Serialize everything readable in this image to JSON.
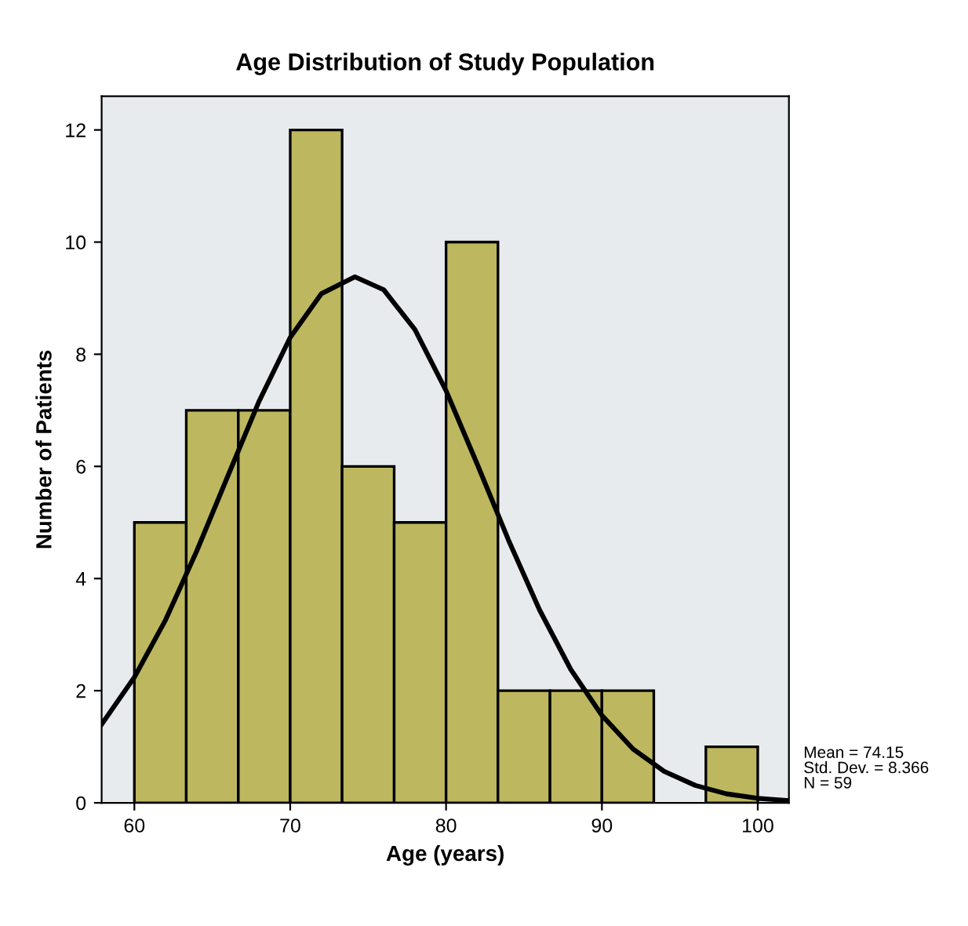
{
  "chart_data": {
    "type": "histogram",
    "title": "Age Distribution of Study Population",
    "xlabel": "Age (years)",
    "ylabel": "Number of Patients",
    "xlim": [
      57.9,
      102.0
    ],
    "ylim": [
      0,
      12.6
    ],
    "xticks": [
      60,
      70,
      80,
      90,
      100
    ],
    "yticks": [
      0,
      2,
      4,
      6,
      8,
      10,
      12
    ],
    "grid": false,
    "legend": false,
    "color": "#bdb75f",
    "bins": [
      60,
      63.33,
      66.67,
      70,
      73.33,
      76.67,
      80,
      83.33,
      86.67,
      90,
      93.33,
      96.67,
      100
    ],
    "values": [
      5,
      7,
      7,
      12,
      6,
      5,
      10,
      2,
      2,
      2,
      0,
      1
    ],
    "series": [
      {
        "type": "line",
        "color": "#000000",
        "x": [
          57.9,
          60,
          62,
          64,
          66,
          68,
          70,
          72,
          74.15,
          76,
          78,
          80,
          82,
          84,
          86,
          88,
          90,
          92,
          94,
          96,
          98,
          100,
          102
        ],
        "values": [
          1.4,
          2.24,
          3.26,
          4.49,
          5.83,
          7.16,
          8.3,
          9.08,
          9.38,
          9.15,
          8.44,
          7.35,
          6.04,
          4.69,
          3.44,
          2.38,
          1.56,
          0.96,
          0.56,
          0.31,
          0.16,
          0.08,
          0.04
        ]
      }
    ],
    "annotations": [
      "Mean = 74.15\nStd. Dev. = 8.366\nN = 59"
    ]
  }
}
